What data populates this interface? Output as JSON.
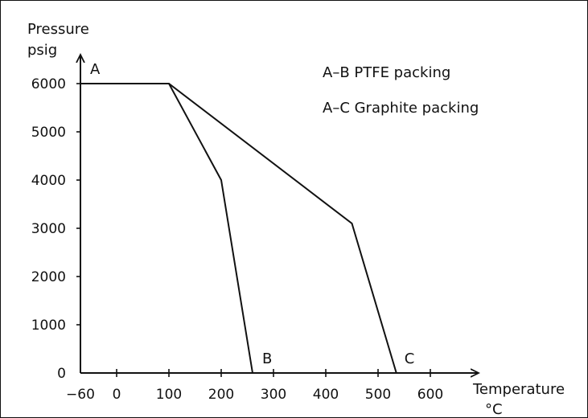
{
  "chart_data": {
    "type": "line",
    "ylabel_line1": "Pressure",
    "ylabel_line2": "psig",
    "xlabel_line1": "Temperature",
    "xlabel_line2": "°C",
    "x_ticks": [
      "-60",
      "0",
      "100",
      "200",
      "300",
      "400",
      "500",
      "600"
    ],
    "y_ticks": [
      "0",
      "1000",
      "2000",
      "3000",
      "4000",
      "5000",
      "6000"
    ],
    "xlim": [
      -60,
      650
    ],
    "ylim": [
      0,
      6600
    ],
    "legend_lines": [
      "A–B PTFE packing",
      "A–C Graphite packing"
    ],
    "series": [
      {
        "name": "A–B PTFE packing",
        "x": [
          -60,
          100,
          200,
          260
        ],
        "y": [
          6000,
          6000,
          4000,
          0
        ]
      },
      {
        "name": "A–C Graphite packing",
        "x": [
          -60,
          100,
          450,
          535
        ],
        "y": [
          6000,
          6000,
          3100,
          0
        ]
      }
    ],
    "point_labels": [
      {
        "text": "A",
        "x": -60,
        "y": 6000
      },
      {
        "text": "B",
        "x": 260,
        "y": 0
      },
      {
        "text": "C",
        "x": 535,
        "y": 0
      }
    ],
    "grid": false,
    "legend_placement": "top-right"
  }
}
